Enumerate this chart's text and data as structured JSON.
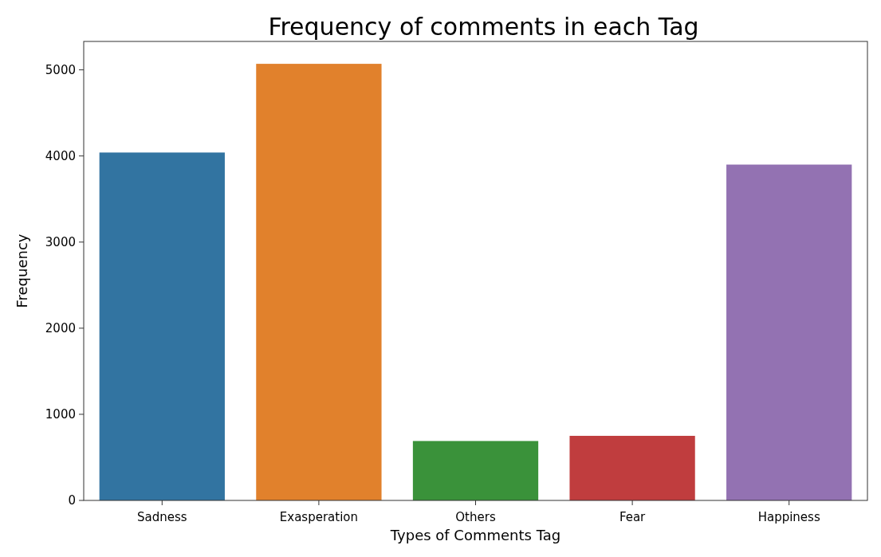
{
  "chart_data": {
    "type": "bar",
    "title": "Frequency of comments in each Tag",
    "xlabel": "Types of Comments Tag",
    "ylabel": "Frequency",
    "categories": [
      "Sadness",
      "Exasperation",
      "Others",
      "Fear",
      "Happiness"
    ],
    "values": [
      4040,
      5070,
      690,
      750,
      3900
    ],
    "colors": [
      "#3274a1",
      "#e1812c",
      "#3a923a",
      "#c03d3e",
      "#9372b2"
    ],
    "ylim": [
      0,
      5330
    ],
    "yticks": [
      0,
      1000,
      2000,
      3000,
      4000,
      5000
    ],
    "grid": false
  }
}
